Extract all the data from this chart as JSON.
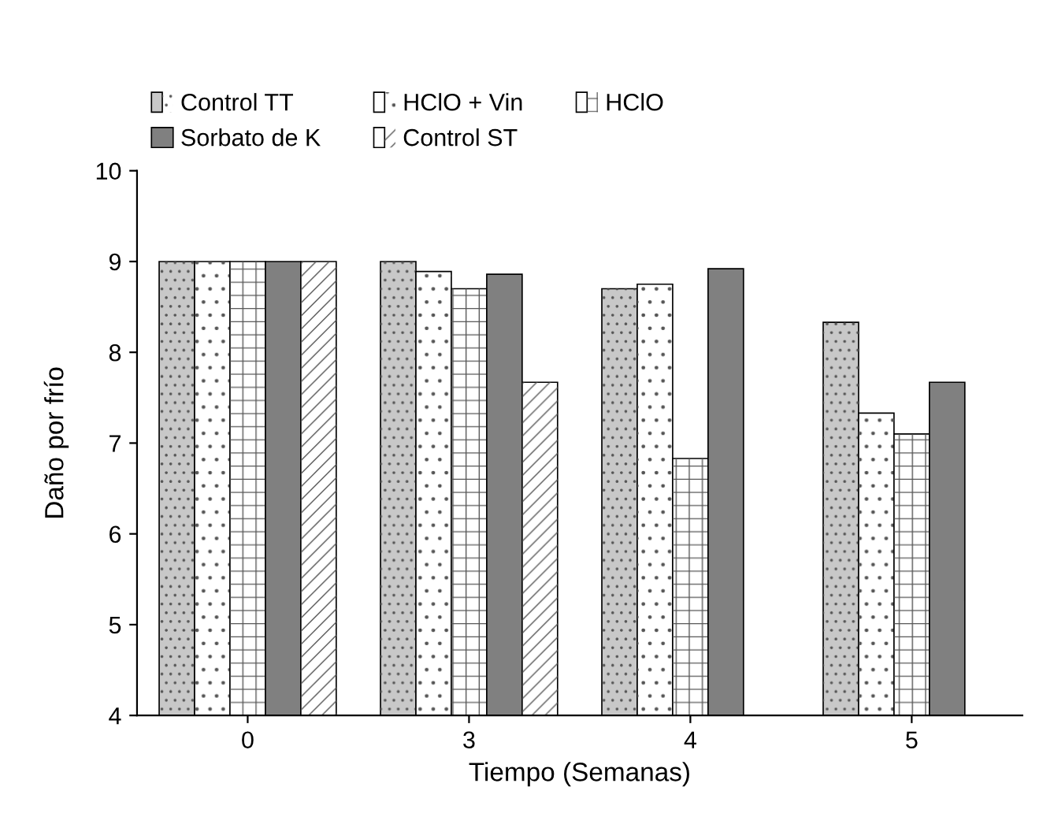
{
  "chart_data": {
    "type": "bar",
    "xlabel": "Tiempo (Semanas)",
    "ylabel": "Daño por frío",
    "categories": [
      "0",
      "3",
      "4",
      "5"
    ],
    "series": [
      {
        "name": "Control TT",
        "color": "#c8c8c8",
        "values": [
          9,
          9,
          8.7,
          8.33
        ]
      },
      {
        "name": "HClO + Vin",
        "color": "#ffffff",
        "values": [
          9,
          8.89,
          8.75,
          7.33
        ]
      },
      {
        "name": "HClO",
        "color": "#ffffff",
        "values": [
          9,
          8.7,
          6.83,
          7.1
        ]
      },
      {
        "name": "Sorbato de K",
        "color": "#808080",
        "values": [
          9,
          8.86,
          8.92,
          7.67
        ]
      },
      {
        "name": "Control ST",
        "color": "#ffffff",
        "values": [
          9,
          7.67,
          null,
          null
        ]
      }
    ],
    "ylim": [
      4,
      10
    ],
    "yticks": [
      4,
      5,
      6,
      7,
      8,
      9,
      10
    ],
    "grid": false,
    "legend": "top"
  }
}
